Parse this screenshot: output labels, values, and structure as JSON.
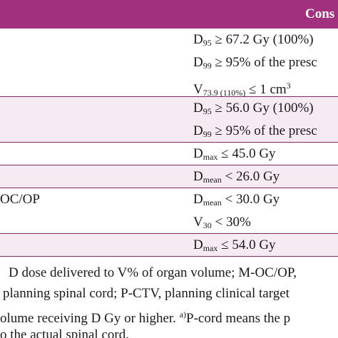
{
  "table": {
    "header": {
      "right": "Cons"
    },
    "groups": [
      {
        "rows": [
          {
            "criterion": [
              {
                "text": "D"
              },
              {
                "sub": "95"
              },
              {
                "text": " ≥ 67.2 Gy (100%)"
              }
            ]
          },
          {
            "criterion": [
              {
                "text": "D"
              },
              {
                "sub": "99"
              },
              {
                "text": " ≥ 95% of the presc"
              }
            ]
          },
          {
            "criterion": [
              {
                "text": "V"
              },
              {
                "sub": "73.9 (110%)"
              },
              {
                "text": " ≤ 1 cm"
              },
              {
                "sup": "3"
              }
            ]
          }
        ]
      },
      {
        "rows": [
          {
            "criterion": [
              {
                "text": "D"
              },
              {
                "sub": "95"
              },
              {
                "text": " ≥ 56.0 Gy (100%)"
              }
            ]
          },
          {
            "criterion": [
              {
                "text": "D"
              },
              {
                "sub": "99"
              },
              {
                "text": " ≥ 95% of the presc"
              }
            ]
          }
        ]
      },
      {
        "rows": [
          {
            "criterion": [
              {
                "text": "D"
              },
              {
                "sub": "max"
              },
              {
                "text": " ≤ 45.0 Gy"
              }
            ]
          }
        ]
      },
      {
        "rows": [
          {
            "criterion": [
              {
                "text": "D"
              },
              {
                "sub": "mean"
              },
              {
                "text": " < 26.0 Gy"
              }
            ]
          }
        ]
      },
      {
        "label": "OC/OP",
        "rows": [
          {
            "criterion": [
              {
                "text": "D"
              },
              {
                "sub": "mean"
              },
              {
                "text": " < 30.0 Gy"
              }
            ]
          },
          {
            "criterion": [
              {
                "text": "V"
              },
              {
                "sub": "30"
              },
              {
                "text": " < 30%"
              }
            ]
          }
        ]
      },
      {
        "rows": [
          {
            "criterion": [
              {
                "text": "D"
              },
              {
                "sub": "max"
              },
              {
                "text": " ≤ 54.0 Gy"
              }
            ]
          }
        ]
      }
    ],
    "footnote": [
      [
        {
          "text": "D dose delivered to V% of organ volume; M-OC/OP,"
        }
      ],
      [
        {
          "text": "planning spinal cord; P-CTV, planning clinical target"
        }
      ],
      [
        {
          "text": "olume receiving D Gy or higher. "
        },
        {
          "sup": "a)"
        },
        {
          "text": "P-cord means the p"
        }
      ],
      [
        {
          "text": "o the actual spinal cord."
        }
      ]
    ]
  }
}
